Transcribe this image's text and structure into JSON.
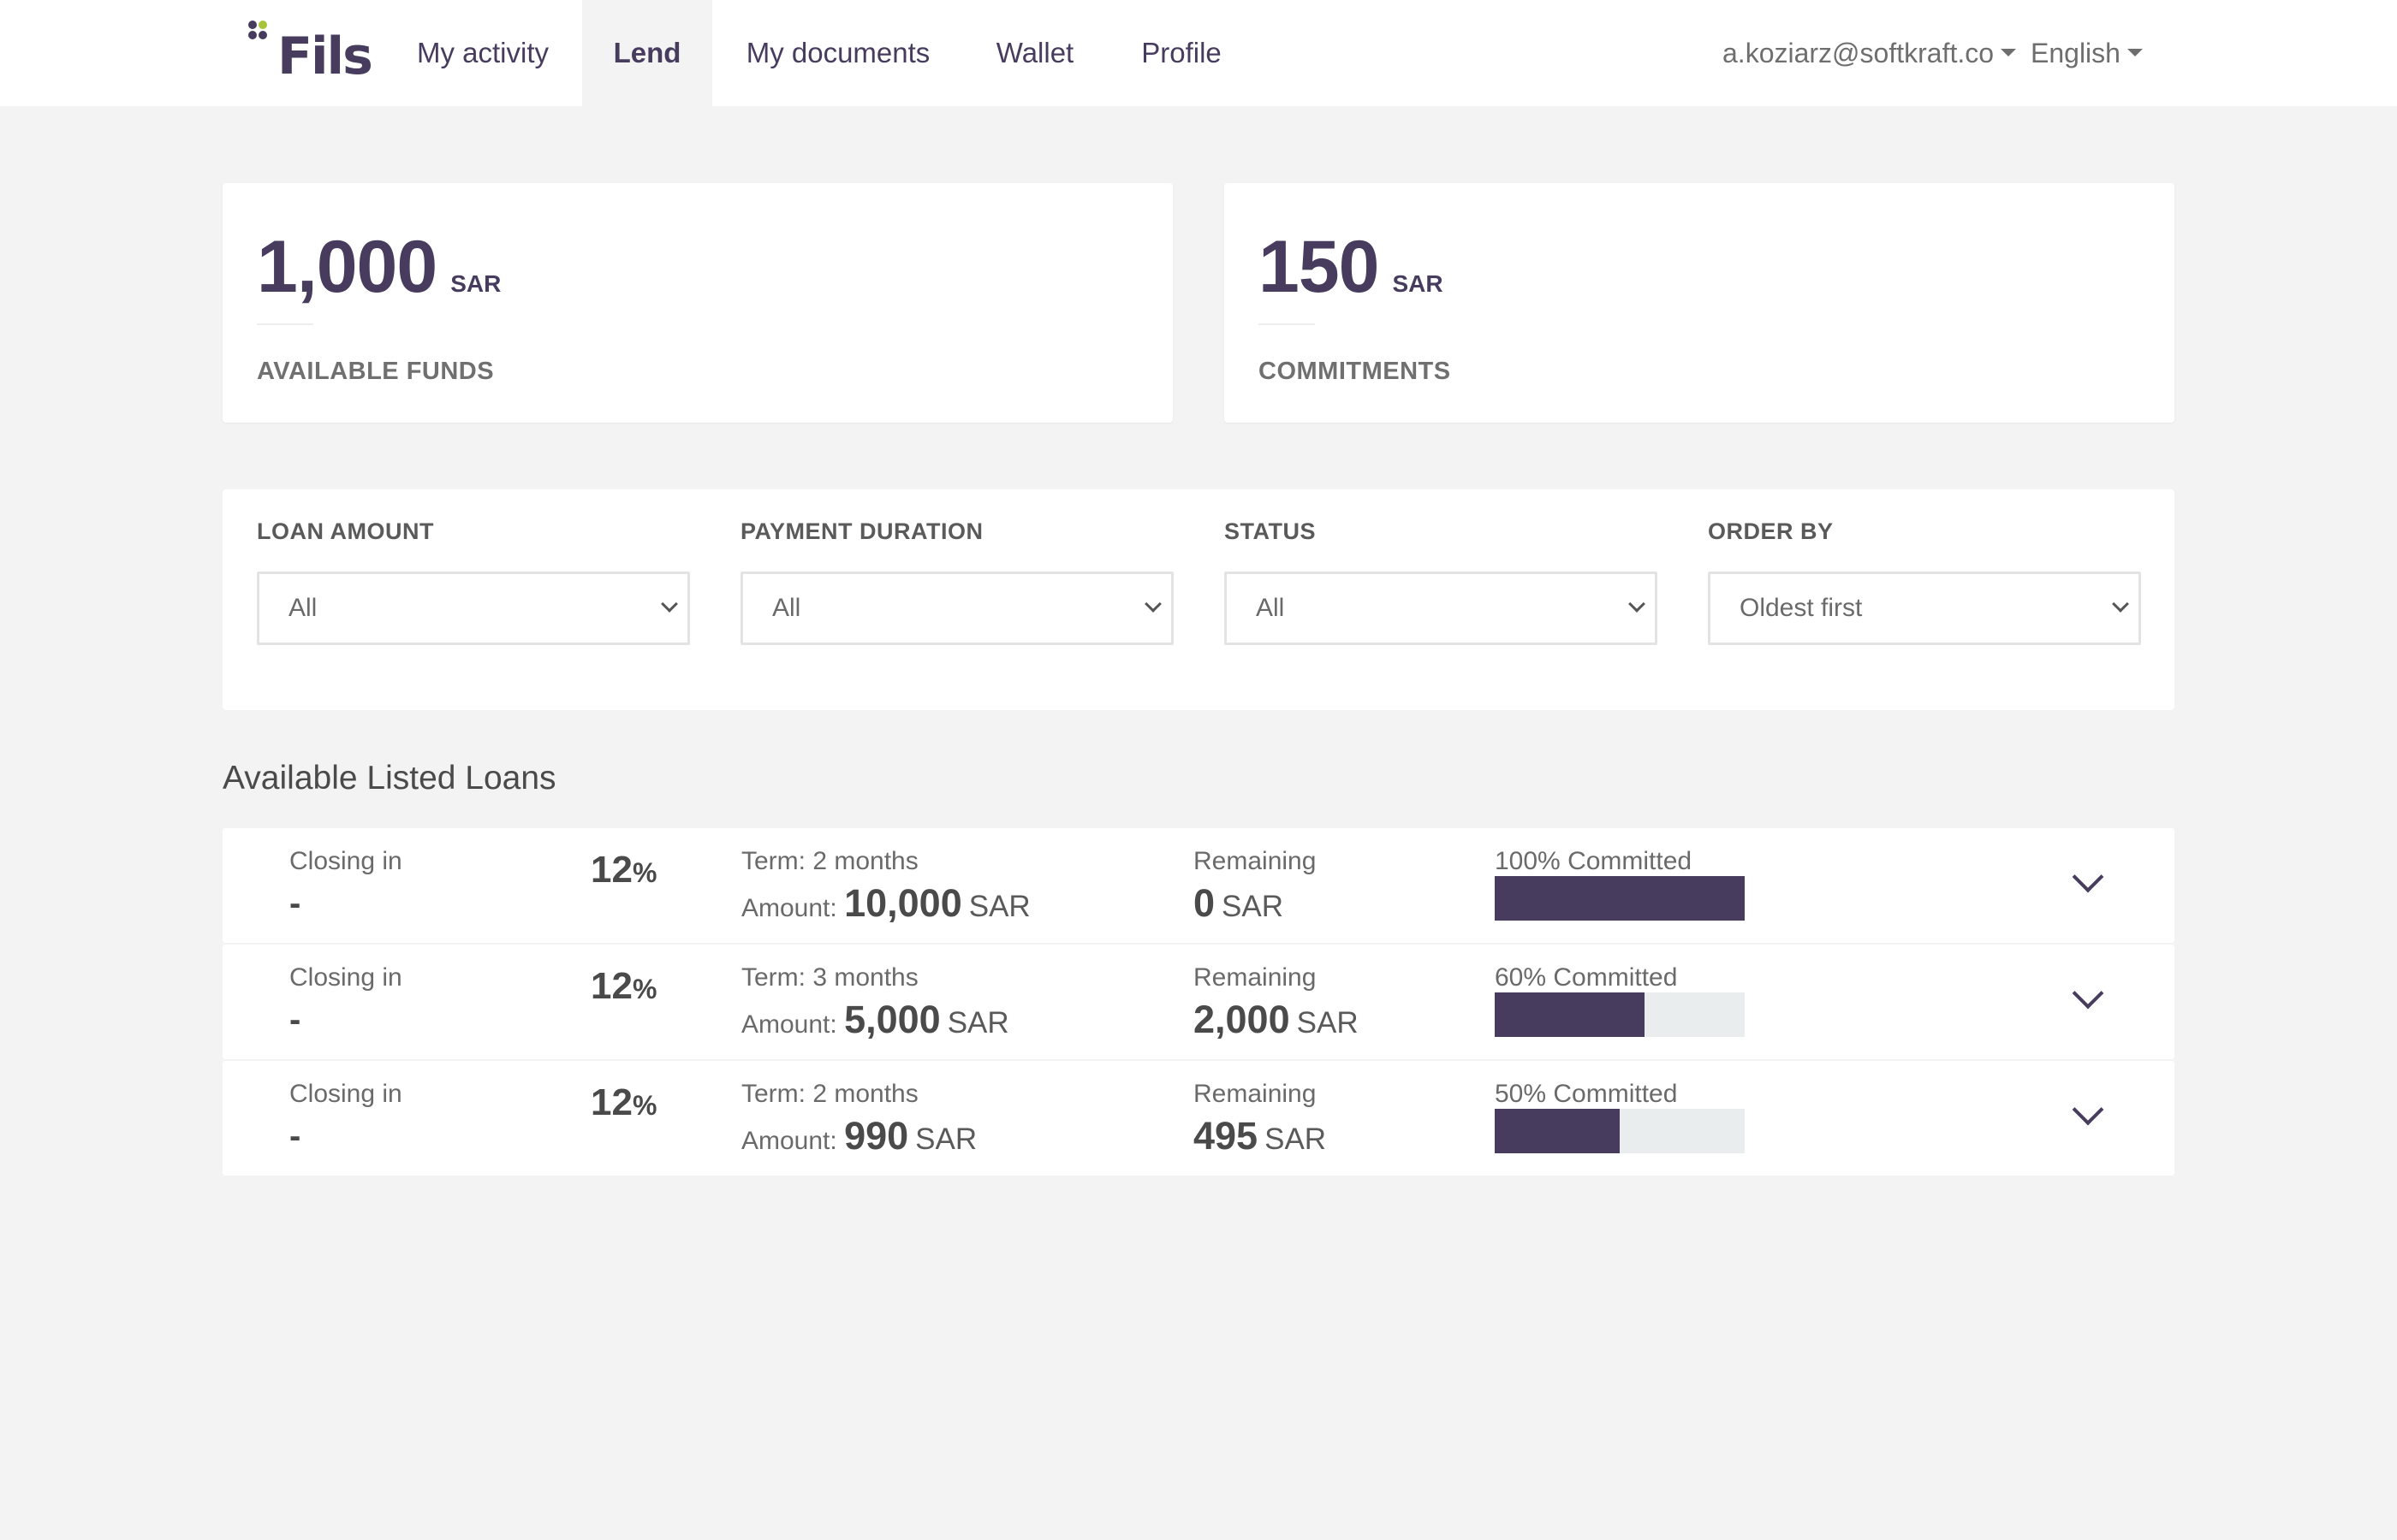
{
  "nav": {
    "logo": "Fils",
    "items": [
      {
        "label": "My activity",
        "active": false
      },
      {
        "label": "Lend",
        "active": true
      },
      {
        "label": "My documents",
        "active": false
      },
      {
        "label": "Wallet",
        "active": false
      },
      {
        "label": "Profile",
        "active": false
      }
    ],
    "user_email": "a.koziarz@softkraft.co",
    "language": "English"
  },
  "summary": {
    "available": {
      "value": "1,000",
      "unit": "SAR",
      "caption": "AVAILABLE FUNDS"
    },
    "commitments": {
      "value": "150",
      "unit": "SAR",
      "caption": "COMMITMENTS"
    }
  },
  "filters": [
    {
      "label": "LOAN AMOUNT",
      "value": "All"
    },
    {
      "label": "PAYMENT DURATION",
      "value": "All"
    },
    {
      "label": "STATUS",
      "value": "All"
    },
    {
      "label": "ORDER BY",
      "value": "Oldest first"
    }
  ],
  "section_title": "Available Listed Loans",
  "loans": [
    {
      "closing_label": "Closing in",
      "closing_value": "-",
      "rate": "12",
      "rate_unit": "%",
      "term": "Term: 2 months",
      "amount_label": "Amount:",
      "amount": "10,000",
      "amount_unit": "SAR",
      "remaining_label": "Remaining",
      "remaining": "0",
      "remaining_unit": "SAR",
      "committed_label": "100% Committed",
      "committed_fraction": 1.0
    },
    {
      "closing_label": "Closing in",
      "closing_value": "-",
      "rate": "12",
      "rate_unit": "%",
      "term": "Term: 3 months",
      "amount_label": "Amount:",
      "amount": "5,000",
      "amount_unit": "SAR",
      "remaining_label": "Remaining",
      "remaining": "2,000",
      "remaining_unit": "SAR",
      "committed_label": "60% Committed",
      "committed_fraction": 0.6
    },
    {
      "closing_label": "Closing in",
      "closing_value": "-",
      "rate": "12",
      "rate_unit": "%",
      "term": "Term: 2 months",
      "amount_label": "Amount:",
      "amount": "990",
      "amount_unit": "SAR",
      "remaining_label": "Remaining",
      "remaining": "495",
      "remaining_unit": "SAR",
      "committed_label": "50% Committed",
      "committed_fraction": 0.5
    }
  ],
  "colors": {
    "brand": "#473c5e",
    "logo_accent": "#a8c43a",
    "background": "#f3f3f3",
    "bar_track": "#eaedee"
  }
}
